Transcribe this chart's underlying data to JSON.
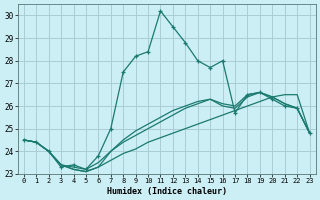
{
  "xlabel": "Humidex (Indice chaleur)",
  "bg_color": "#cceef5",
  "grid_color": "#aaccd4",
  "line_color": "#1a7a6e",
  "xlim": [
    -0.5,
    23.5
  ],
  "ylim": [
    23,
    30.5
  ],
  "yticks": [
    23,
    24,
    25,
    26,
    27,
    28,
    29,
    30
  ],
  "xticks": [
    0,
    1,
    2,
    3,
    4,
    5,
    6,
    7,
    8,
    9,
    10,
    11,
    12,
    13,
    14,
    15,
    16,
    17,
    18,
    19,
    20,
    21,
    22,
    23
  ],
  "series": [
    [
      24.5,
      24.4,
      24.0,
      23.3,
      23.4,
      23.2,
      23.8,
      25.0,
      27.5,
      28.2,
      28.4,
      30.2,
      29.5,
      28.8,
      28.0,
      27.7,
      28.0,
      25.7,
      26.5,
      26.6,
      26.3,
      26.0,
      25.9,
      24.8
    ],
    [
      24.5,
      24.4,
      24.0,
      23.4,
      23.3,
      23.2,
      23.5,
      24.0,
      24.4,
      24.7,
      25.0,
      25.3,
      25.6,
      25.9,
      26.1,
      26.3,
      26.0,
      25.9,
      26.4,
      26.6,
      26.4,
      26.1,
      25.9,
      24.8
    ],
    [
      24.5,
      24.4,
      24.0,
      23.4,
      23.2,
      23.1,
      23.3,
      24.0,
      24.5,
      24.9,
      25.2,
      25.5,
      25.8,
      26.0,
      26.2,
      26.3,
      26.1,
      26.0,
      26.5,
      26.6,
      26.4,
      26.1,
      25.9,
      24.8
    ],
    [
      24.5,
      24.4,
      24.0,
      23.4,
      23.2,
      23.1,
      23.3,
      23.6,
      23.9,
      24.1,
      24.4,
      24.6,
      24.8,
      25.0,
      25.2,
      25.4,
      25.6,
      25.8,
      26.0,
      26.2,
      26.4,
      26.5,
      26.5,
      24.8
    ]
  ]
}
